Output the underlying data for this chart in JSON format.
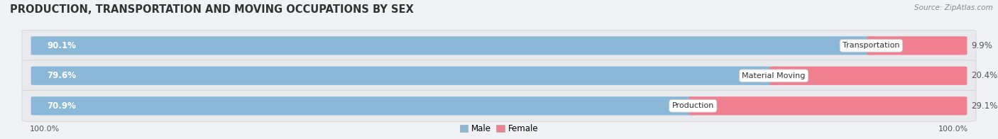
{
  "title": "PRODUCTION, TRANSPORTATION AND MOVING OCCUPATIONS BY SEX",
  "source": "Source: ZipAtlas.com",
  "categories": [
    "Transportation",
    "Material Moving",
    "Production"
  ],
  "male_values": [
    90.1,
    79.6,
    70.9
  ],
  "female_values": [
    9.9,
    20.4,
    29.1
  ],
  "male_color": "#8cb8d8",
  "female_color": "#f08090",
  "male_label": "Male",
  "female_label": "Female",
  "left_label": "100.0%",
  "right_label": "100.0%",
  "bg_color": "#f0f2f5",
  "row_bg_color": "#e8eaed",
  "title_fontsize": 10.5,
  "source_fontsize": 7.5,
  "bar_label_fontsize": 8.5,
  "pct_label_fontsize": 8.5,
  "cat_label_fontsize": 8,
  "legend_fontsize": 8.5,
  "axis_label_fontsize": 8
}
